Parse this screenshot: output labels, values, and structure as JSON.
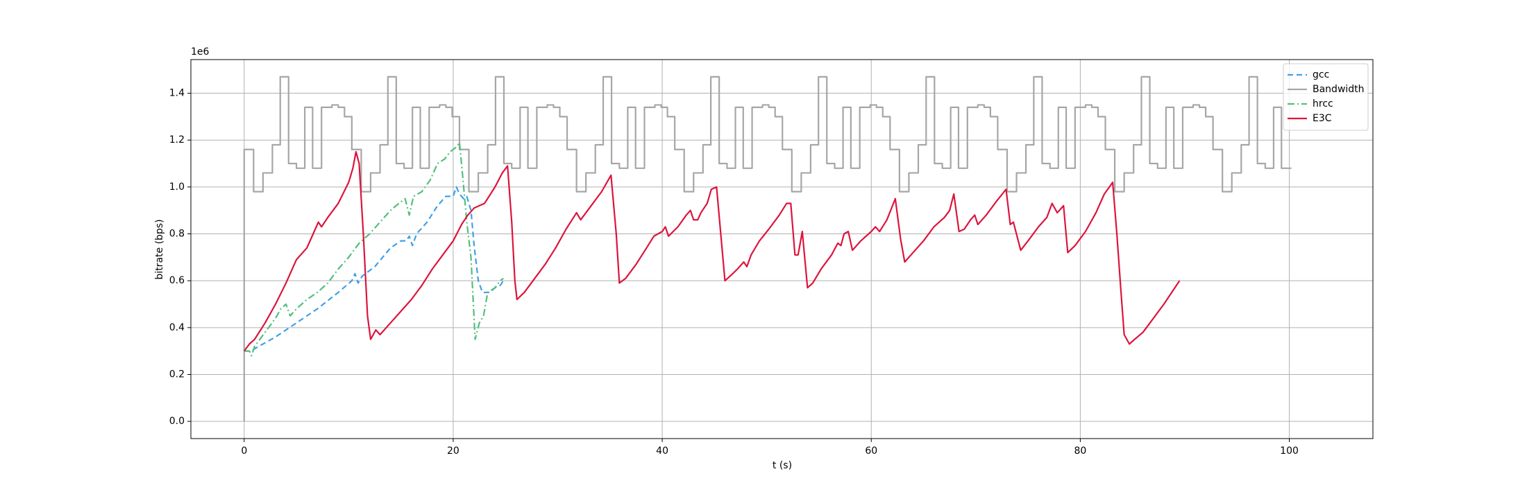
{
  "chart_data": {
    "type": "line",
    "x_label": "t (s)",
    "y_label": "bitrate (bps)",
    "y_offset_label": "1e6",
    "xlim": [
      -5.1,
      108.0
    ],
    "ylim": [
      -0.0735,
      1.5435
    ],
    "xticks": [
      0,
      20,
      40,
      60,
      80,
      100
    ],
    "yticks": [
      {
        "value": 0,
        "label": "0.0"
      },
      0.2,
      0.4,
      0.6,
      0.8,
      {
        "value": 1,
        "label": "1.0"
      },
      1.2,
      1.4
    ],
    "grid": true,
    "legend": "upper right",
    "series": [
      {
        "name": "gcc",
        "color": "#3fa0e8",
        "linestyle": "dashed",
        "x": [
          0,
          0.7,
          1,
          3,
          5,
          7,
          9,
          10.3,
          10.6,
          10.9,
          11.3,
          12.5,
          14,
          15,
          15.5,
          15.8,
          16.1,
          16.5,
          17.5,
          18.5,
          19.3,
          20,
          20.3,
          20.6,
          21,
          21.3,
          21.7,
          22,
          22.4,
          22.8,
          23.5,
          24,
          24.5,
          24.8
        ],
        "values": [
          0.3,
          0.3,
          0.31,
          0.36,
          0.42,
          0.48,
          0.55,
          0.6,
          0.63,
          0.59,
          0.62,
          0.66,
          0.74,
          0.77,
          0.77,
          0.79,
          0.75,
          0.8,
          0.85,
          0.92,
          0.96,
          0.96,
          1.0,
          0.97,
          0.95,
          0.96,
          0.9,
          0.75,
          0.6,
          0.55,
          0.55,
          0.57,
          0.58,
          0.6
        ]
      },
      {
        "name": "Bandwidth",
        "color": "#a6a6a6",
        "linestyle": "solid",
        "drawstyle": "steps-post",
        "x": [
          0,
          0,
          0.9,
          1.8,
          2.7,
          3.45,
          4.25,
          5.0,
          5.8,
          6.55,
          7.4,
          8.4,
          9.0,
          9.6,
          10.3,
          11.2,
          12.1,
          13.0,
          13.75,
          14.55,
          15.3,
          16.1,
          16.85,
          17.7,
          18.7,
          19.3,
          19.9,
          20.6,
          21.5,
          22.4,
          23.3,
          24.05,
          24.85,
          25.6,
          26.4,
          27.15,
          28.0,
          29.0,
          29.6,
          30.2,
          30.9,
          31.8,
          32.7,
          33.6,
          34.35,
          35.15,
          35.9,
          36.7,
          37.45,
          38.3,
          39.3,
          39.9,
          40.5,
          41.2,
          42.1,
          43.0,
          43.9,
          44.65,
          45.45,
          46.2,
          47.0,
          47.75,
          48.6,
          49.6,
          50.2,
          50.8,
          51.5,
          52.4,
          53.3,
          54.2,
          54.95,
          55.75,
          56.5,
          57.3,
          58.05,
          58.9,
          59.9,
          60.5,
          61.1,
          61.8,
          62.7,
          63.6,
          64.5,
          65.25,
          66.05,
          66.8,
          67.6,
          68.35,
          69.2,
          70.2,
          70.8,
          71.4,
          72.1,
          73.0,
          73.9,
          74.8,
          75.55,
          76.35,
          77.1,
          77.9,
          78.65,
          79.5,
          80.5,
          81.1,
          81.7,
          82.4,
          83.3,
          84.2,
          85.1,
          85.85,
          86.65,
          87.4,
          88.2,
          88.95,
          89.8,
          90.8,
          91.4,
          92.0,
          92.7,
          93.6,
          94.5,
          95.4,
          96.15,
          96.95,
          97.7,
          98.5,
          99.25,
          100.2
        ],
        "values": [
          0,
          1.16,
          0.98,
          1.06,
          1.18,
          1.47,
          1.1,
          1.08,
          1.34,
          1.08,
          1.34,
          1.35,
          1.34,
          1.3,
          1.16,
          0.98,
          1.06,
          1.18,
          1.47,
          1.1,
          1.08,
          1.34,
          1.08,
          1.34,
          1.35,
          1.34,
          1.3,
          1.16,
          0.98,
          1.06,
          1.18,
          1.47,
          1.1,
          1.08,
          1.34,
          1.08,
          1.34,
          1.35,
          1.34,
          1.3,
          1.16,
          0.98,
          1.06,
          1.18,
          1.47,
          1.1,
          1.08,
          1.34,
          1.08,
          1.34,
          1.35,
          1.34,
          1.3,
          1.16,
          0.98,
          1.06,
          1.18,
          1.47,
          1.1,
          1.08,
          1.34,
          1.08,
          1.34,
          1.35,
          1.34,
          1.3,
          1.16,
          0.98,
          1.06,
          1.18,
          1.47,
          1.1,
          1.08,
          1.34,
          1.08,
          1.34,
          1.35,
          1.34,
          1.3,
          1.16,
          0.98,
          1.06,
          1.18,
          1.47,
          1.1,
          1.08,
          1.34,
          1.08,
          1.34,
          1.35,
          1.34,
          1.3,
          1.16,
          0.98,
          1.06,
          1.18,
          1.47,
          1.1,
          1.08,
          1.34,
          1.08,
          1.34,
          1.35,
          1.34,
          1.3,
          1.16,
          0.98,
          1.06,
          1.18,
          1.47,
          1.1,
          1.08,
          1.34,
          1.08,
          1.34,
          1.35,
          1.34,
          1.3,
          1.16,
          0.98,
          1.06,
          1.18,
          1.47,
          1.1,
          1.08,
          1.34,
          1.08,
          1.08
        ]
      },
      {
        "name": "hrcc",
        "color": "#52bf7d",
        "linestyle": "dashdot",
        "x": [
          0,
          0.5,
          0.7,
          1,
          2,
          3,
          3.5,
          4,
          4.4,
          5,
          6,
          7,
          8,
          9,
          10,
          11,
          12,
          13,
          14,
          14.8,
          15.4,
          15.8,
          16.2,
          17,
          17.8,
          18.5,
          19.2,
          19.7,
          20.3,
          20.6,
          20.9,
          21.3,
          21.7,
          22.1,
          22.5,
          22.9,
          23.3,
          24,
          24.5,
          24.8
        ],
        "values": [
          0.3,
          0.3,
          0.28,
          0.32,
          0.38,
          0.44,
          0.48,
          0.5,
          0.45,
          0.48,
          0.52,
          0.55,
          0.59,
          0.65,
          0.7,
          0.76,
          0.8,
          0.85,
          0.9,
          0.93,
          0.95,
          0.88,
          0.96,
          0.98,
          1.03,
          1.1,
          1.12,
          1.15,
          1.17,
          1.19,
          1.05,
          0.85,
          0.7,
          0.35,
          0.42,
          0.45,
          0.55,
          0.57,
          0.6,
          0.61
        ]
      },
      {
        "name": "E3C",
        "color": "#dc143c",
        "linestyle": "solid",
        "x": [
          0,
          0.5,
          1,
          2,
          3,
          4,
          5,
          6,
          6.8,
          7.1,
          7.4,
          8,
          9,
          10,
          10.4,
          10.7,
          11.0,
          11.4,
          11.8,
          12.1,
          12.6,
          13,
          14,
          15,
          16,
          17,
          18,
          19,
          20,
          20.8,
          21.4,
          22,
          23,
          24,
          24.7,
          25.2,
          25.6,
          25.9,
          26.1,
          26.8,
          27.8,
          28.8,
          29.8,
          30.8,
          31.8,
          32.2,
          33.2,
          34.2,
          35.1,
          35.6,
          35.9,
          36.5,
          37.5,
          38.5,
          39.2,
          40.0,
          40.3,
          40.6,
          41.5,
          42.3,
          42.7,
          43.0,
          43.4,
          43.7,
          44.3,
          44.7,
          45.2,
          45.6,
          46.0,
          46.5,
          47.2,
          47.8,
          48.1,
          48.5,
          49.3,
          50.2,
          51.2,
          51.9,
          52.3,
          52.7,
          53.0,
          53.4,
          53.9,
          54.4,
          55.2,
          56.2,
          56.8,
          57.1,
          57.4,
          57.8,
          58.2,
          59.0,
          60.0,
          60.4,
          60.8,
          61.5,
          62.3,
          62.8,
          63.2,
          64.0,
          65.0,
          66.0,
          67.0,
          67.5,
          67.9,
          68.4,
          68.9,
          69.5,
          69.9,
          70.2,
          71.0,
          72.0,
          72.9,
          73.3,
          73.6,
          74.3,
          75.0,
          76.0,
          76.8,
          77.3,
          77.8,
          78.4,
          78.8,
          79.5,
          80.5,
          81.5,
          82.3,
          83.1,
          83.5,
          83.9,
          84.2,
          84.7,
          85.2,
          86.0,
          87.0,
          88.0,
          89.5
        ],
        "values": [
          0.3,
          0.33,
          0.35,
          0.42,
          0.5,
          0.59,
          0.69,
          0.74,
          0.82,
          0.85,
          0.83,
          0.87,
          0.93,
          1.02,
          1.08,
          1.15,
          1.1,
          0.8,
          0.45,
          0.35,
          0.39,
          0.37,
          0.42,
          0.47,
          0.52,
          0.58,
          0.65,
          0.71,
          0.77,
          0.84,
          0.88,
          0.91,
          0.93,
          1.0,
          1.06,
          1.09,
          0.85,
          0.6,
          0.52,
          0.55,
          0.61,
          0.67,
          0.74,
          0.82,
          0.89,
          0.86,
          0.92,
          0.98,
          1.05,
          0.8,
          0.59,
          0.61,
          0.67,
          0.74,
          0.79,
          0.81,
          0.83,
          0.79,
          0.83,
          0.88,
          0.9,
          0.86,
          0.86,
          0.89,
          0.93,
          0.99,
          1.0,
          0.8,
          0.6,
          0.62,
          0.65,
          0.68,
          0.66,
          0.71,
          0.77,
          0.82,
          0.88,
          0.93,
          0.93,
          0.71,
          0.71,
          0.81,
          0.57,
          0.59,
          0.65,
          0.71,
          0.76,
          0.75,
          0.8,
          0.81,
          0.73,
          0.77,
          0.81,
          0.83,
          0.81,
          0.86,
          0.95,
          0.78,
          0.68,
          0.72,
          0.77,
          0.83,
          0.87,
          0.9,
          0.97,
          0.81,
          0.82,
          0.86,
          0.88,
          0.84,
          0.88,
          0.94,
          0.99,
          0.84,
          0.85,
          0.73,
          0.77,
          0.83,
          0.87,
          0.93,
          0.89,
          0.92,
          0.72,
          0.75,
          0.81,
          0.89,
          0.97,
          1.02,
          0.8,
          0.55,
          0.37,
          0.33,
          0.35,
          0.38,
          0.44,
          0.5,
          0.6
        ]
      }
    ]
  }
}
